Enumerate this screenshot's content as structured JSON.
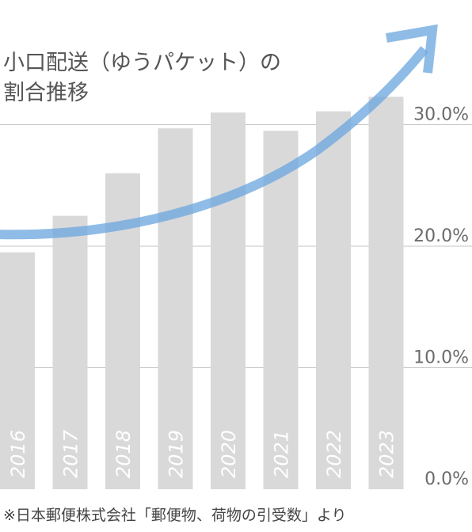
{
  "chart_data": {
    "type": "bar",
    "title": "小口配送（ゆうパケット）の\n割合推移",
    "title_lines": [
      "小口配送（ゆうパケット）の",
      "割合推移"
    ],
    "categories": [
      "2016",
      "2017",
      "2018",
      "2019",
      "2020",
      "2021",
      "2022",
      "2023"
    ],
    "values": [
      19.5,
      22.5,
      26.0,
      29.7,
      31.0,
      29.5,
      31.1,
      32.3
    ],
    "ylim": [
      0,
      33
    ],
    "yticks": [
      "0.0%",
      "10.0%",
      "20.0%",
      "30.0%"
    ],
    "ytick_values": [
      0,
      10,
      20,
      30
    ],
    "xlabel": "",
    "ylabel": "",
    "grid": true,
    "trend_arrow": true,
    "source_note": "※日本郵便株式会社「郵便物、荷物の引受数」より",
    "colors": {
      "bar": "#d9d9da",
      "grid": "#c4c4c4",
      "year_label": "#ffffff",
      "tick_label": "#6b6b6b",
      "title": "#555555",
      "arrow": "#6aa6dd"
    }
  }
}
